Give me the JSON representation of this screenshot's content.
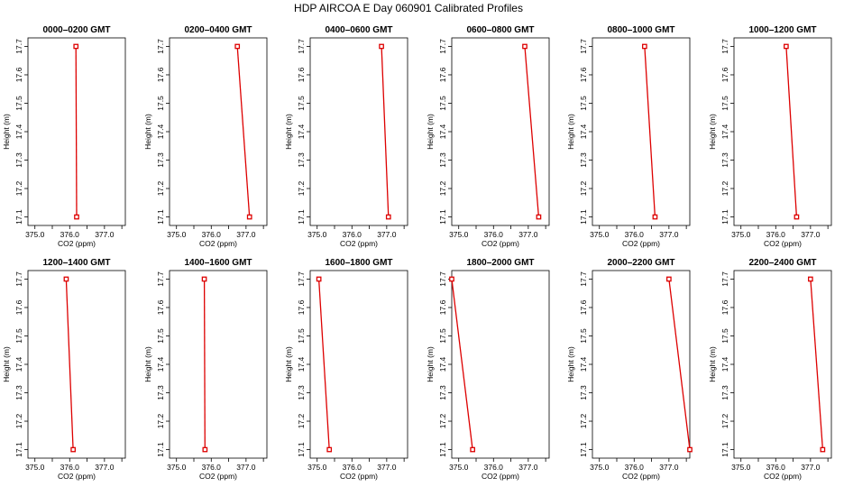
{
  "title": "HDP  AIRCOA E  Day 060901  Calibrated Profiles",
  "chart_data": {
    "type": "line",
    "title": "HDP  AIRCOA E  Day 060901  Calibrated Profiles",
    "xlabel": "CO2 (ppm)",
    "ylabel": "Height (m)",
    "xlim": [
      374.8,
      377.6
    ],
    "ylim": [
      17.07,
      17.73
    ],
    "xticks": [
      "375.0",
      "376.0",
      "377.0"
    ],
    "yticks": [
      "17.1",
      "17.2",
      "17.3",
      "17.4",
      "17.5",
      "17.6",
      "17.7"
    ],
    "series_color": "#dd0000",
    "panels": [
      {
        "title": "0000–0200 GMT",
        "points": [
          {
            "co2": 376.18,
            "height": 17.7
          },
          {
            "co2": 376.2,
            "height": 17.1
          }
        ]
      },
      {
        "title": "0200–0400 GMT",
        "points": [
          {
            "co2": 376.75,
            "height": 17.7
          },
          {
            "co2": 377.1,
            "height": 17.1
          }
        ]
      },
      {
        "title": "0400–0600 GMT",
        "points": [
          {
            "co2": 376.85,
            "height": 17.7
          },
          {
            "co2": 377.05,
            "height": 17.1
          }
        ]
      },
      {
        "title": "0600–0800 GMT",
        "points": [
          {
            "co2": 376.9,
            "height": 17.7
          },
          {
            "co2": 377.3,
            "height": 17.1
          }
        ]
      },
      {
        "title": "0800–1000 GMT",
        "points": [
          {
            "co2": 376.3,
            "height": 17.7
          },
          {
            "co2": 376.6,
            "height": 17.1
          }
        ]
      },
      {
        "title": "1000–1200 GMT",
        "points": [
          {
            "co2": 376.3,
            "height": 17.7
          },
          {
            "co2": 376.6,
            "height": 17.1
          }
        ]
      },
      {
        "title": "1200–1400 GMT",
        "points": [
          {
            "co2": 375.9,
            "height": 17.7
          },
          {
            "co2": 376.1,
            "height": 17.1
          }
        ]
      },
      {
        "title": "1400–1600 GMT",
        "points": [
          {
            "co2": 375.8,
            "height": 17.7
          },
          {
            "co2": 375.82,
            "height": 17.1
          }
        ]
      },
      {
        "title": "1600–1800 GMT",
        "points": [
          {
            "co2": 375.05,
            "height": 17.7
          },
          {
            "co2": 375.35,
            "height": 17.1
          }
        ]
      },
      {
        "title": "1800–2000 GMT",
        "points": [
          {
            "co2": 374.8,
            "height": 17.7
          },
          {
            "co2": 375.4,
            "height": 17.1
          }
        ]
      },
      {
        "title": "2000–2200 GMT",
        "points": [
          {
            "co2": 377.0,
            "height": 17.7
          },
          {
            "co2": 377.6,
            "height": 17.1
          }
        ]
      },
      {
        "title": "2200–2400 GMT",
        "points": [
          {
            "co2": 377.0,
            "height": 17.7
          },
          {
            "co2": 377.35,
            "height": 17.1
          }
        ]
      }
    ]
  }
}
